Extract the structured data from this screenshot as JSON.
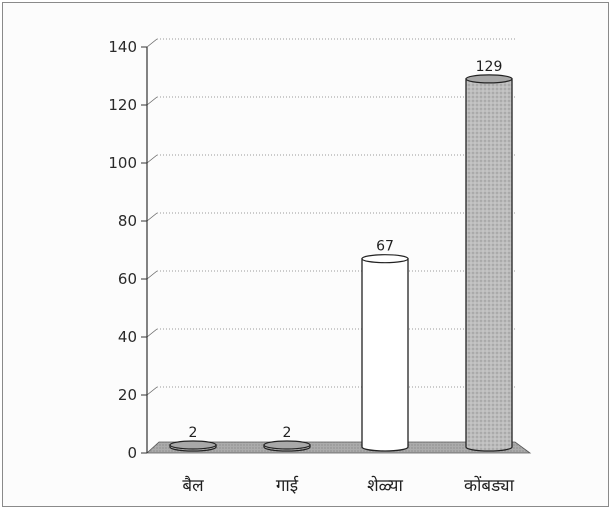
{
  "chart_data": {
    "type": "bar",
    "title": "",
    "xlabel": "",
    "ylabel": "",
    "categories": [
      "बैल",
      "गाई",
      "शेळ्या",
      "कोंबड्या"
    ],
    "values": [
      2,
      2,
      67,
      129
    ],
    "ylim": [
      0,
      140
    ],
    "yticks": [
      0,
      20,
      40,
      60,
      80,
      100,
      120,
      140
    ],
    "grid": true,
    "bar_styles": [
      "shaded",
      "shaded",
      "white",
      "shaded"
    ],
    "colors": {
      "shaded": "#b9b9b9",
      "white": "#ffffff",
      "floor": "#a9a9a9",
      "outline": "#222222"
    }
  }
}
